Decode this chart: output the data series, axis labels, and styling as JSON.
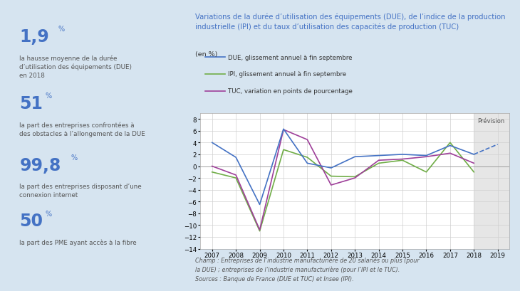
{
  "title": "Variations de la durée d’utilisation des équipements (DUE), de l’indice de la production\nindustrielle (IPI) et du taux d’utilisation des capacités de production (TUC)",
  "subtitle": "(en %)",
  "bg_color": "#d6e4f0",
  "chart_bg": "#ffffff",
  "years_due": [
    2007,
    2008,
    2009,
    2010,
    2011,
    2012,
    2013,
    2014,
    2015,
    2016,
    2017,
    2018
  ],
  "due_values": [
    4.0,
    1.5,
    -6.5,
    6.3,
    0.5,
    -0.3,
    1.6,
    1.8,
    2.0,
    1.8,
    3.5,
    2.0
  ],
  "due_forecast": [
    2018,
    2019
  ],
  "due_forecast_values": [
    2.0,
    3.7
  ],
  "years_ipi": [
    2007,
    2008,
    2009,
    2010,
    2011,
    2012,
    2013,
    2014,
    2015,
    2016,
    2017,
    2018
  ],
  "ipi_values": [
    -1.0,
    -2.0,
    -11.0,
    2.8,
    1.5,
    -1.7,
    -1.8,
    0.5,
    1.0,
    -1.0,
    4.0,
    -1.0
  ],
  "years_tuc": [
    2007,
    2008,
    2009,
    2010,
    2011,
    2012,
    2013,
    2014,
    2015,
    2016,
    2017,
    2018
  ],
  "tuc_values": [
    0.0,
    -1.5,
    -10.8,
    6.2,
    4.5,
    -3.2,
    -2.0,
    1.0,
    1.2,
    1.6,
    2.2,
    0.5
  ],
  "due_color": "#4472c4",
  "ipi_color": "#70ad47",
  "tuc_color": "#9e3f99",
  "xlim": [
    2006.5,
    2019.5
  ],
  "ylim": [
    -14,
    9
  ],
  "yticks": [
    -14,
    -12,
    -10,
    -8,
    -6,
    -4,
    -2,
    0,
    2,
    4,
    6,
    8
  ],
  "xticks": [
    2007,
    2008,
    2009,
    2010,
    2011,
    2012,
    2013,
    2014,
    2015,
    2016,
    2017,
    2018,
    2019
  ],
  "forecast_start": 2018,
  "legend_entries": [
    "DUE, glissement annuel à fin septembre",
    "IPI, glissement annuel à fin septembre",
    "TUC, variation en points de pourcentage"
  ],
  "left_stats": [
    {
      "value": "1,9",
      "unit": "%",
      "desc": "la hausse moyenne de la durée\nd’utilisation des équipements (DUE)\nen 2018"
    },
    {
      "value": "51",
      "unit": "%",
      "desc": "la part des entreprises confrontées à\ndes obstacles à l’allongement de la DUE"
    },
    {
      "value": "99,8",
      "unit": "%",
      "desc": "la part des entreprises disposant d’une\nconnexion internet"
    },
    {
      "value": "50",
      "unit": "%",
      "desc": "la part des PME ayant accès à la fibre"
    }
  ],
  "footnote": "Champ : Entreprises de l’industrie manufacturière de 20 salariés ou plus (pour\nla DUE) ; entreprises de l’industrie manufacturière (pour l’IPI et le TUC).\nSources : Banque de France (DUE et TUC) et Insee (IPI).",
  "stat_value_color": "#4472c4",
  "stat_desc_color": "#555555",
  "title_color": "#4472c4"
}
